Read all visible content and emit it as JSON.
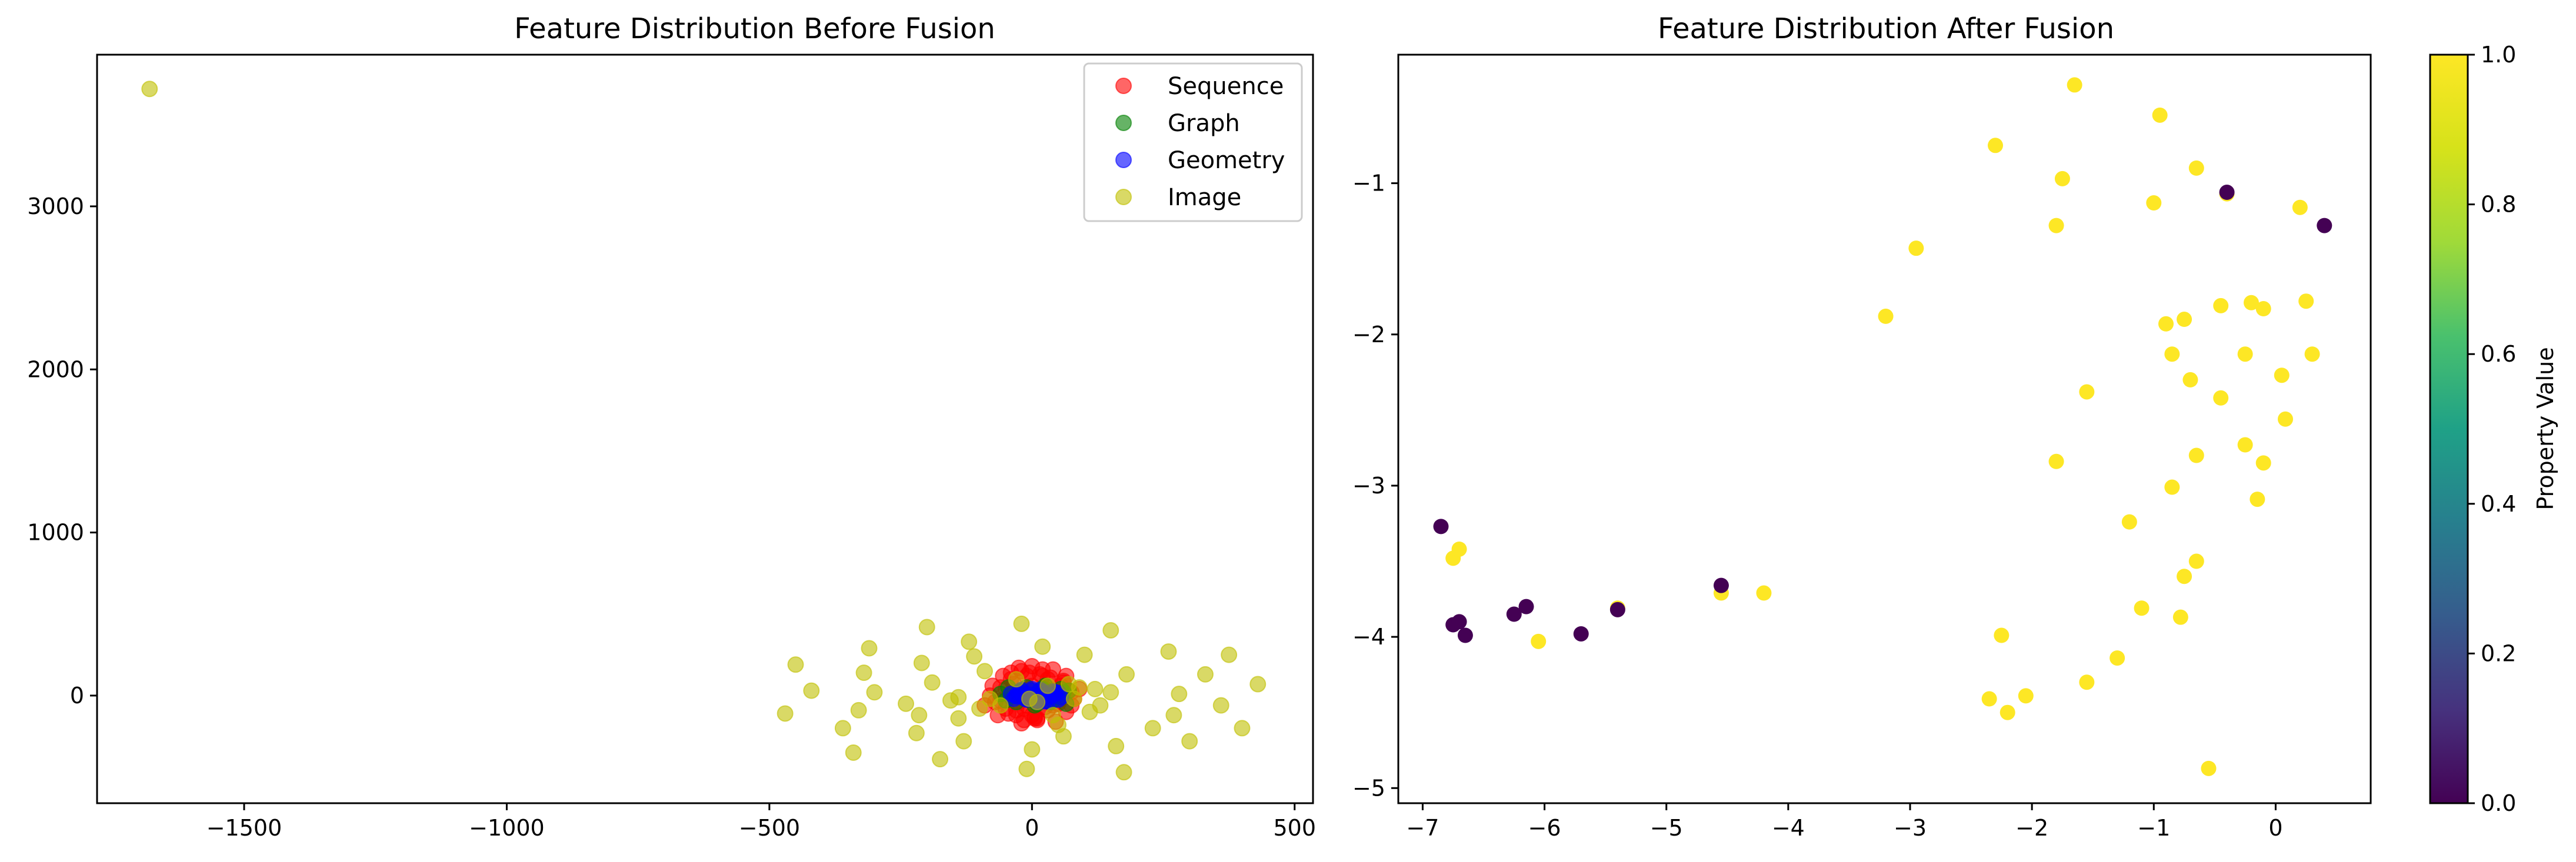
{
  "chart_data": [
    {
      "type": "scatter",
      "title": "Feature Distribution Before Fusion",
      "xlabel": "",
      "ylabel": "",
      "xlim": [
        -1780,
        535
      ],
      "ylim": [
        -660,
        3930
      ],
      "xticks": [
        -1500,
        -1000,
        -500,
        0,
        500
      ],
      "xtick_labels": [
        "−1500",
        "−1000",
        "−500",
        "0",
        "500"
      ],
      "yticks": [
        0,
        1000,
        2000,
        3000
      ],
      "ytick_labels": [
        "0",
        "1000",
        "2000",
        "3000"
      ],
      "grid": false,
      "legend_position": "top-right",
      "series": [
        {
          "name": "Sequence",
          "color": "#ff0000",
          "alpha": 0.6,
          "x": [
            -80,
            -60,
            -50,
            -40,
            -30,
            -20,
            -10,
            0,
            10,
            20,
            30,
            40,
            50,
            60,
            70,
            80,
            -70,
            -55,
            -45,
            -35,
            -25,
            -15,
            -5,
            5,
            15,
            25,
            35,
            45,
            55,
            65,
            75,
            -60,
            -40,
            -20,
            0,
            20,
            40,
            60,
            -50,
            -30,
            -10,
            10,
            30,
            50,
            -90,
            90,
            -20,
            20,
            0,
            -40,
            40,
            -65,
            65,
            -25,
            25,
            -5,
            5,
            -75,
            75,
            -15
          ],
          "y": [
            0,
            50,
            -80,
            100,
            -120,
            150,
            -60,
            180,
            -140,
            120,
            -90,
            160,
            -50,
            90,
            30,
            -20,
            -40,
            120,
            -110,
            70,
            170,
            -150,
            40,
            -130,
            130,
            -70,
            110,
            -160,
            60,
            -100,
            20,
            -30,
            140,
            -170,
            -120,
            160,
            -60,
            80,
            40,
            -90,
            120,
            -150,
            100,
            -40,
            -60,
            40,
            20,
            -20,
            60,
            -10,
            10,
            -120,
            120,
            -40,
            40,
            140,
            -140,
            60,
            -60,
            -80
          ]
        },
        {
          "name": "Graph",
          "color": "#008000",
          "alpha": 0.6,
          "x": [
            -40,
            -20,
            0,
            20,
            40,
            60,
            -60,
            -30,
            -10,
            10,
            30,
            50,
            70,
            -50,
            -25,
            5,
            25,
            45,
            -15,
            15,
            35,
            55,
            -45,
            -5,
            65
          ],
          "y": [
            0,
            30,
            -20,
            40,
            -30,
            20,
            10,
            -40,
            50,
            -50,
            10,
            -10,
            30,
            -30,
            20,
            -60,
            60,
            0,
            -10,
            30,
            -40,
            40,
            50,
            -25,
            -50
          ]
        },
        {
          "name": "Geometry",
          "color": "#0000ff",
          "alpha": 0.6,
          "x": [
            -30,
            -20,
            -10,
            0,
            10,
            20,
            30,
            40,
            50,
            -25,
            -15,
            -5,
            5,
            15,
            25,
            35,
            45,
            -35,
            -40,
            55,
            0,
            10,
            20,
            -10,
            -20,
            30,
            40,
            -30,
            50,
            5
          ],
          "y": [
            0,
            20,
            -20,
            30,
            -30,
            10,
            -10,
            25,
            -25,
            15,
            -15,
            5,
            -5,
            35,
            -35,
            0,
            20,
            -20,
            10,
            -10,
            40,
            -40,
            25,
            -25,
            35,
            -35,
            5,
            -5,
            15,
            -15
          ]
        },
        {
          "name": "Image",
          "color": "#bfbf00",
          "alpha": 0.6,
          "x": [
            -1680,
            -450,
            -470,
            -420,
            -360,
            -340,
            -320,
            -310,
            -300,
            -215,
            -210,
            -200,
            -190,
            -175,
            -155,
            -140,
            -130,
            -120,
            -110,
            -90,
            -60,
            -30,
            -20,
            -10,
            0,
            10,
            20,
            40,
            60,
            70,
            80,
            100,
            130,
            150,
            160,
            175,
            180,
            230,
            260,
            280,
            300,
            330,
            360,
            375,
            400,
            430,
            -220,
            -100,
            120,
            -330,
            -80,
            50,
            270,
            -5,
            90,
            150,
            -240,
            30,
            -140,
            110
          ],
          "y": [
            3720,
            190,
            -110,
            30,
            -200,
            -350,
            140,
            290,
            20,
            -120,
            200,
            420,
            80,
            -390,
            -30,
            -140,
            -280,
            330,
            240,
            150,
            -60,
            100,
            440,
            -450,
            -330,
            -40,
            300,
            -120,
            -250,
            70,
            -20,
            250,
            -60,
            400,
            -310,
            -470,
            130,
            -200,
            270,
            10,
            -280,
            130,
            -60,
            250,
            -200,
            70,
            -230,
            -80,
            40,
            -90,
            -20,
            -180,
            -120,
            -20,
            50,
            20,
            -50,
            60,
            -10,
            -100
          ]
        }
      ]
    },
    {
      "type": "scatter",
      "title": "Feature Distribution After Fusion",
      "xlabel": "",
      "ylabel": "",
      "xlim": [
        -7.2,
        0.78
      ],
      "ylim": [
        -5.1,
        -0.15
      ],
      "xticks": [
        -7,
        -6,
        -5,
        -4,
        -3,
        -2,
        -1,
        0
      ],
      "xtick_labels": [
        "−7",
        "−6",
        "−5",
        "−4",
        "−3",
        "−2",
        "−1",
        "0"
      ],
      "yticks": [
        -5,
        -4,
        -3,
        -2,
        -1
      ],
      "ytick_labels": [
        "−5",
        "−4",
        "−3",
        "−2",
        "−1"
      ],
      "grid": false,
      "colormap": "viridis",
      "colorbar": {
        "label": "Property Value",
        "range": [
          0.0,
          1.0
        ],
        "ticks": [
          0.0,
          0.2,
          0.4,
          0.6,
          0.8,
          1.0
        ],
        "tick_labels": [
          "0.0",
          "0.2",
          "0.4",
          "0.6",
          "0.8",
          "1.0"
        ]
      },
      "points_value_1": {
        "x": [
          -1.65,
          -0.95,
          -2.3,
          -0.65,
          -1.75,
          -0.4,
          -1.0,
          0.2,
          -1.8,
          -2.95,
          -3.2,
          -0.9,
          -0.45,
          -0.2,
          -0.1,
          0.25,
          -0.75,
          -0.85,
          -0.25,
          0.3,
          -0.7,
          0.05,
          -1.55,
          -0.45,
          0.08,
          -0.65,
          -0.25,
          -1.8,
          -0.1,
          -0.85,
          -0.15,
          -1.2,
          -0.65,
          -0.75,
          -1.1,
          -0.78,
          -1.3,
          -2.25,
          -1.55,
          -2.35,
          -2.05,
          -2.2,
          -0.55,
          -6.75,
          -6.7,
          -6.05,
          -5.4,
          -4.55,
          -4.2
        ],
        "y": [
          -0.35,
          -0.55,
          -0.75,
          -0.9,
          -0.97,
          -1.07,
          -1.13,
          -1.16,
          -1.28,
          -1.43,
          -1.88,
          -1.93,
          -1.81,
          -1.79,
          -1.83,
          -1.78,
          -1.9,
          -2.13,
          -2.13,
          -2.13,
          -2.3,
          -2.27,
          -2.38,
          -2.42,
          -2.56,
          -2.8,
          -2.73,
          -2.84,
          -2.85,
          -3.01,
          -3.09,
          -3.24,
          -3.5,
          -3.6,
          -3.81,
          -3.87,
          -4.14,
          -3.99,
          -4.3,
          -4.41,
          -4.39,
          -4.5,
          -4.87,
          -3.48,
          -3.42,
          -4.03,
          -3.81,
          -3.71,
          -3.71
        ]
      },
      "points_value_0": {
        "x": [
          -0.4,
          0.4,
          -6.85,
          -6.75,
          -6.7,
          -6.65,
          -6.25,
          -6.15,
          -5.7,
          -5.4,
          -4.55
        ],
        "y": [
          -1.06,
          -1.28,
          -3.27,
          -3.92,
          -3.9,
          -3.99,
          -3.85,
          -3.8,
          -3.98,
          -3.82,
          -3.66
        ]
      }
    }
  ]
}
